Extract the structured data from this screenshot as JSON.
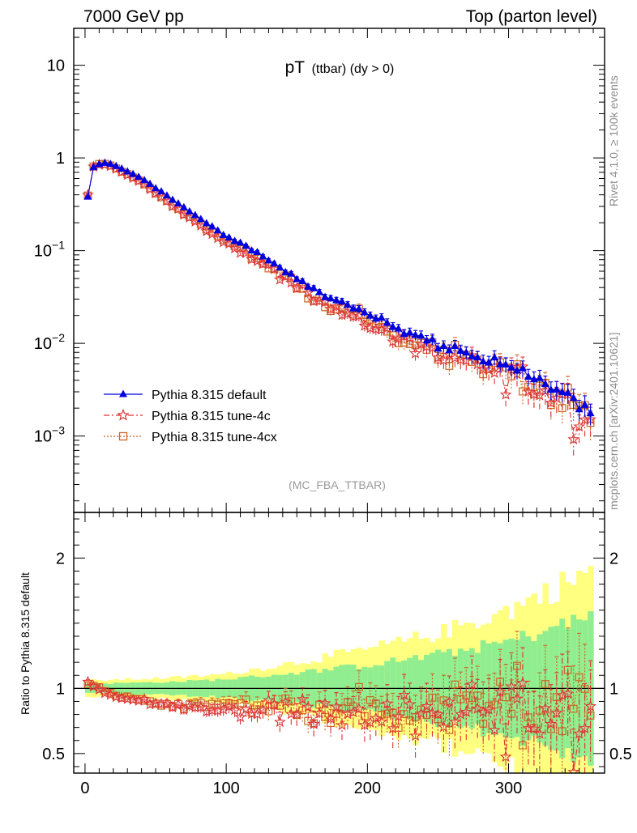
{
  "header": {
    "left": "7000 GeV pp",
    "right": "Top (parton level)"
  },
  "side_labels": {
    "rivet": "Rivet 4.1.0, ≥ 100k events",
    "mcplots": "mcplots.cern.ch [arXiv:2401.10621]"
  },
  "colors": {
    "default": "#0000dd",
    "tune4c": "#dd3333",
    "tune4cx": "#cc6622",
    "band_outer": "#ffff80",
    "band_inner": "#90ee90"
  },
  "chart_data": {
    "type": "line",
    "title_main": "pT",
    "title_sub": "(ttbar) (dy > 0)",
    "watermark": "(MC_FBA_TTBAR)",
    "xlim": [
      -8,
      368
    ],
    "ylim_main": [
      0.00015,
      25
    ],
    "ylim_ratio": [
      0.35,
      2.35
    ],
    "yscale_main": "log",
    "ylabel_ratio": "Ratio to Pythia 8.315 default",
    "x_ticks": [
      0,
      100,
      200,
      300
    ],
    "x_tick_labels": [
      "0",
      "100",
      "200",
      "300"
    ],
    "y_ticks_main": [
      {
        "value": 10,
        "base": "10",
        "exp": ""
      },
      {
        "value": 1,
        "base": "1",
        "exp": ""
      },
      {
        "value": 0.1,
        "base": "10",
        "exp": "−1"
      },
      {
        "value": 0.01,
        "base": "10",
        "exp": "−2"
      },
      {
        "value": 0.001,
        "base": "10",
        "exp": "−3"
      }
    ],
    "y_ticks_ratio": [
      {
        "value": 2,
        "label": "2"
      },
      {
        "value": 1,
        "label": "1"
      },
      {
        "value": 0.5,
        "label": "0.5"
      }
    ],
    "legend_position": "lower-left",
    "series": [
      {
        "name": "Pythia 8.315 default",
        "key": "default",
        "marker": "triangle",
        "line": "solid"
      },
      {
        "name": "Pythia 8.315 tune-4c",
        "key": "tune4c",
        "marker": "star",
        "line": "dashdot"
      },
      {
        "name": "Pythia 8.315 tune-4cx",
        "key": "tune4cx",
        "marker": "square",
        "line": "dotted"
      }
    ],
    "binning": {
      "start": 0,
      "width": 4,
      "count": 90
    },
    "default_anchors": [
      [
        2,
        0.38
      ],
      [
        6,
        0.79
      ],
      [
        10,
        0.85
      ],
      [
        14,
        0.88
      ],
      [
        20,
        0.84
      ],
      [
        30,
        0.72
      ],
      [
        40,
        0.6
      ],
      [
        50,
        0.47
      ],
      [
        60,
        0.37
      ],
      [
        75,
        0.26
      ],
      [
        90,
        0.18
      ],
      [
        100,
        0.14
      ],
      [
        120,
        0.1
      ],
      [
        140,
        0.062
      ],
      [
        160,
        0.04
      ],
      [
        180,
        0.028
      ],
      [
        200,
        0.021
      ],
      [
        220,
        0.015
      ],
      [
        240,
        0.011
      ],
      [
        260,
        0.0085
      ],
      [
        280,
        0.0068
      ],
      [
        300,
        0.0058
      ],
      [
        320,
        0.0042
      ],
      [
        340,
        0.0031
      ],
      [
        358,
        0.0022
      ]
    ],
    "ratio_4c_anchors": [
      [
        2,
        1.04
      ],
      [
        8,
        1.0
      ],
      [
        20,
        0.94
      ],
      [
        40,
        0.9
      ],
      [
        60,
        0.86
      ],
      [
        80,
        0.85
      ],
      [
        100,
        0.84
      ],
      [
        150,
        0.82
      ],
      [
        200,
        0.8
      ],
      [
        250,
        0.78
      ],
      [
        300,
        0.8
      ],
      [
        358,
        0.8
      ]
    ],
    "ratio_4cx_anchors": [
      [
        2,
        1.03
      ],
      [
        8,
        1.02
      ],
      [
        20,
        0.95
      ],
      [
        40,
        0.91
      ],
      [
        60,
        0.88
      ],
      [
        80,
        0.87
      ],
      [
        100,
        0.86
      ],
      [
        150,
        0.85
      ],
      [
        200,
        0.83
      ],
      [
        250,
        0.82
      ],
      [
        300,
        0.85
      ],
      [
        358,
        0.88
      ]
    ],
    "band_inner_anchors": [
      [
        0,
        0.035
      ],
      [
        60,
        0.05
      ],
      [
        100,
        0.07
      ],
      [
        150,
        0.12
      ],
      [
        200,
        0.18
      ],
      [
        250,
        0.26
      ],
      [
        300,
        0.36
      ],
      [
        358,
        0.55
      ]
    ],
    "band_outer_anchors": [
      [
        0,
        0.06
      ],
      [
        60,
        0.08
      ],
      [
        100,
        0.11
      ],
      [
        150,
        0.2
      ],
      [
        200,
        0.3
      ],
      [
        250,
        0.42
      ],
      [
        300,
        0.6
      ],
      [
        358,
        0.9
      ]
    ]
  }
}
